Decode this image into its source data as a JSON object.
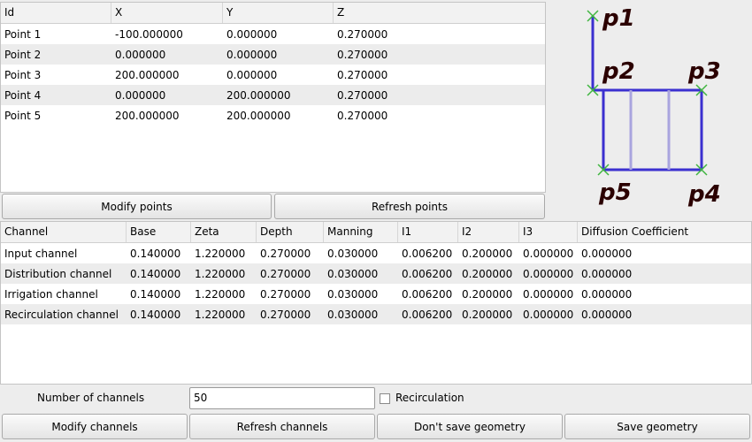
{
  "points_table": {
    "columns": [
      "Id",
      "X",
      "Y",
      "Z"
    ],
    "rows": [
      [
        "Point 1",
        "-100.000000",
        "0.000000",
        "0.270000"
      ],
      [
        "Point 2",
        "0.000000",
        "0.000000",
        "0.270000"
      ],
      [
        "Point 3",
        "200.000000",
        "0.000000",
        "0.270000"
      ],
      [
        "Point 4",
        "0.000000",
        "200.000000",
        "0.270000"
      ],
      [
        "Point 5",
        "200.000000",
        "200.000000",
        "0.270000"
      ]
    ]
  },
  "point_buttons": {
    "modify": "Modify points",
    "refresh": "Refresh points"
  },
  "diagram": {
    "labels": {
      "p1": "p1",
      "p2": "p2",
      "p3": "p3",
      "p4": "p4",
      "p5": "p5"
    },
    "colors": {
      "edge": "#3b30d0",
      "divider": "#a9a4de",
      "marker": "#3fb53f",
      "label": "#2b0000"
    }
  },
  "channels_table": {
    "columns": [
      "Channel",
      "Base",
      "Zeta",
      "Depth",
      "Manning",
      "I1",
      "I2",
      "I3",
      "Diffusion Coefficient"
    ],
    "rows": [
      [
        "Input channel",
        "0.140000",
        "1.220000",
        "0.270000",
        "0.030000",
        "0.006200",
        "0.200000",
        "0.000000",
        "0.000000"
      ],
      [
        "Distribution channel",
        "0.140000",
        "1.220000",
        "0.270000",
        "0.030000",
        "0.006200",
        "0.200000",
        "0.000000",
        "0.000000"
      ],
      [
        "Irrigation channel",
        "0.140000",
        "1.220000",
        "0.270000",
        "0.030000",
        "0.006200",
        "0.200000",
        "0.000000",
        "0.000000"
      ],
      [
        "Recirculation channel",
        "0.140000",
        "1.220000",
        "0.270000",
        "0.030000",
        "0.006200",
        "0.200000",
        "0.000000",
        "0.000000"
      ]
    ]
  },
  "channels_form": {
    "count_label": "Number of channels",
    "count_value": "50",
    "recirculation_label": "Recirculation",
    "recirculation_checked": false
  },
  "bottom_buttons": {
    "modify_channels": "Modify channels",
    "refresh_channels": "Refresh channels",
    "dont_save": "Don't save geometry",
    "save": "Save geometry"
  }
}
